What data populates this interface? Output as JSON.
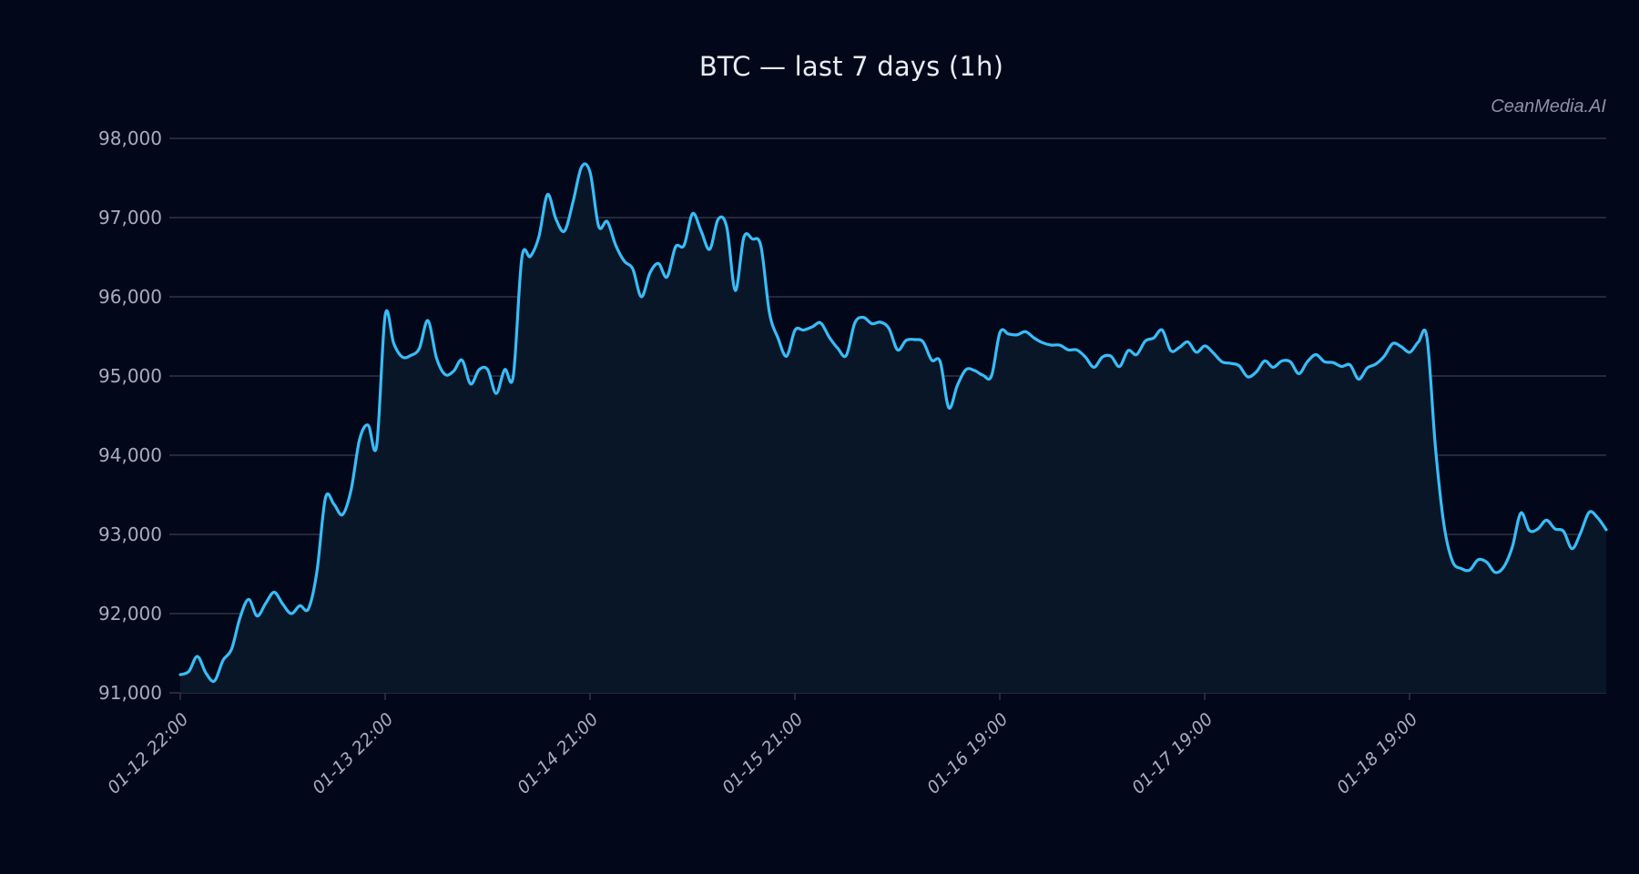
{
  "header": {
    "title": "BTC — last 7 days (1h)",
    "watermark": "CeanMedia.AI"
  },
  "colors": {
    "background": "#03071a",
    "line": "#38bdf8",
    "area_fill": "#081628",
    "grid": "#2f3645",
    "tick_text": "#a6adbb",
    "title_text": "#e8ecf3",
    "watermark_text": "#8a93a6"
  },
  "chart_data": {
    "type": "area",
    "title": "BTC — last 7 days (1h)",
    "xlabel": "",
    "ylabel": "",
    "ylim": [
      91000,
      98000
    ],
    "yticks": [
      91000,
      92000,
      93000,
      94000,
      95000,
      96000,
      97000,
      98000
    ],
    "ytick_labels": [
      "91,000",
      "92,000",
      "93,000",
      "94,000",
      "95,000",
      "96,000",
      "97,000",
      "98,000"
    ],
    "xtick_labels": [
      "01-12 22:00",
      "01-13 22:00",
      "01-14 21:00",
      "01-15 21:00",
      "01-16 19:00",
      "01-17 19:00",
      "01-18 19:00"
    ],
    "xtick_positions": [
      0,
      24,
      48,
      72,
      96,
      120,
      144
    ],
    "grid": true,
    "legend": null,
    "series": [
      {
        "name": "BTC",
        "values": [
          91230,
          91270,
          91460,
          91250,
          91150,
          91410,
          91550,
          91950,
          92180,
          91970,
          92130,
          92270,
          92120,
          92000,
          92100,
          92060,
          92530,
          93460,
          93380,
          93250,
          93560,
          94200,
          94380,
          94120,
          95770,
          95410,
          95240,
          95260,
          95350,
          95700,
          95230,
          95020,
          95060,
          95200,
          94900,
          95080,
          95080,
          94780,
          95080,
          95000,
          96490,
          96510,
          96760,
          97290,
          96980,
          96830,
          97200,
          97640,
          97570,
          96890,
          96950,
          96650,
          96450,
          96350,
          96000,
          96300,
          96420,
          96250,
          96630,
          96650,
          97050,
          96830,
          96600,
          96980,
          96880,
          96080,
          96750,
          96730,
          96640,
          95800,
          95480,
          95250,
          95580,
          95580,
          95620,
          95670,
          95490,
          95350,
          95260,
          95670,
          95740,
          95660,
          95680,
          95600,
          95330,
          95450,
          95460,
          95430,
          95200,
          95180,
          94600,
          94880,
          95080,
          95070,
          95010,
          95000,
          95550,
          95530,
          95520,
          95560,
          95480,
          95420,
          95390,
          95390,
          95330,
          95330,
          95240,
          95110,
          95240,
          95250,
          95120,
          95320,
          95270,
          95440,
          95480,
          95580,
          95320,
          95360,
          95430,
          95300,
          95380,
          95290,
          95180,
          95160,
          95130,
          94990,
          95050,
          95190,
          95110,
          95190,
          95180,
          95030,
          95180,
          95270,
          95180,
          95170,
          95120,
          95140,
          94960,
          95100,
          95150,
          95250,
          95410,
          95370,
          95300,
          95430,
          95490,
          94100,
          93120,
          92660,
          92570,
          92550,
          92680,
          92650,
          92520,
          92590,
          92840,
          93270,
          93050,
          93070,
          93180,
          93070,
          93040,
          92820,
          93020,
          93280,
          93210,
          93060
        ]
      }
    ]
  }
}
